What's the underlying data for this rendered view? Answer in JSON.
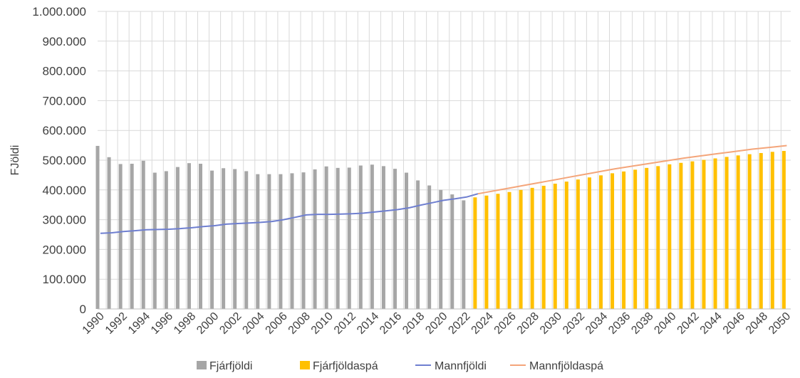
{
  "chart_data": {
    "type": "bar",
    "ylabel": "FJöldi",
    "ylim": [
      0,
      1000000
    ],
    "yticks": [
      "0",
      "100.000",
      "200.000",
      "300.000",
      "400.000",
      "500.000",
      "600.000",
      "700.000",
      "800.000",
      "900.000",
      "1.000.000"
    ],
    "ytick_values": [
      0,
      100000,
      200000,
      300000,
      400000,
      500000,
      600000,
      700000,
      800000,
      900000,
      1000000
    ],
    "x": [
      1990,
      1991,
      1992,
      1993,
      1994,
      1995,
      1996,
      1997,
      1998,
      1999,
      2000,
      2001,
      2002,
      2003,
      2004,
      2005,
      2006,
      2007,
      2008,
      2009,
      2010,
      2011,
      2012,
      2013,
      2014,
      2015,
      2016,
      2017,
      2018,
      2019,
      2020,
      2021,
      2022,
      2023,
      2024,
      2025,
      2026,
      2027,
      2028,
      2029,
      2030,
      2031,
      2032,
      2033,
      2034,
      2035,
      2036,
      2037,
      2038,
      2039,
      2040,
      2041,
      2042,
      2043,
      2044,
      2045,
      2046,
      2047,
      2048,
      2049,
      2050
    ],
    "xtick_labels": [
      "1990",
      "1992",
      "1994",
      "1996",
      "1998",
      "2000",
      "2002",
      "2004",
      "2006",
      "2008",
      "2010",
      "2012",
      "2014",
      "2016",
      "2018",
      "2020",
      "2022",
      "2024",
      "2026",
      "2028",
      "2030",
      "2032",
      "2034",
      "2036",
      "2038",
      "2040",
      "2042",
      "2044",
      "2046",
      "2048",
      "2050"
    ],
    "grid": true,
    "legend_position": "bottom",
    "series": [
      {
        "name": "Fjárfjöldi",
        "kind": "bar",
        "color": "#a6a6a6",
        "x": [
          1990,
          1991,
          1992,
          1993,
          1994,
          1995,
          1996,
          1997,
          1998,
          1999,
          2000,
          2001,
          2002,
          2003,
          2004,
          2005,
          2006,
          2007,
          2008,
          2009,
          2010,
          2011,
          2012,
          2013,
          2014,
          2015,
          2016,
          2017,
          2018,
          2019,
          2020,
          2021,
          2022
        ],
        "values": [
          548000,
          510000,
          487000,
          488000,
          498000,
          458000,
          463000,
          477000,
          490000,
          488000,
          465000,
          473000,
          470000,
          463000,
          453000,
          453000,
          453000,
          456000,
          459000,
          469000,
          479000,
          474000,
          475000,
          482000,
          485000,
          480000,
          471000,
          458000,
          432000,
          415000,
          400000,
          385000,
          365000
        ]
      },
      {
        "name": "Fjárfjöldaspá",
        "kind": "bar",
        "color": "#ffc000",
        "x": [
          2023,
          2024,
          2025,
          2026,
          2027,
          2028,
          2029,
          2030,
          2031,
          2032,
          2033,
          2034,
          2035,
          2036,
          2037,
          2038,
          2039,
          2040,
          2041,
          2042,
          2043,
          2044,
          2045,
          2046,
          2047,
          2048,
          2049,
          2050
        ],
        "values": [
          375000,
          381000,
          387000,
          393000,
          400000,
          407000,
          414000,
          421000,
          428000,
          435000,
          442000,
          449000,
          456000,
          462000,
          468000,
          474000,
          480000,
          486000,
          491000,
          496000,
          501000,
          506000,
          511000,
          516000,
          520000,
          524000,
          528000,
          531000
        ]
      },
      {
        "name": "Mannfjöldi",
        "kind": "line",
        "color": "#6f7fd0",
        "x": [
          1990,
          1991,
          1992,
          1993,
          1994,
          1995,
          1996,
          1997,
          1998,
          1999,
          2000,
          2001,
          2002,
          2003,
          2004,
          2005,
          2006,
          2007,
          2008,
          2009,
          2010,
          2011,
          2012,
          2013,
          2014,
          2015,
          2016,
          2017,
          2018,
          2019,
          2020,
          2021,
          2022,
          2023
        ],
        "values": [
          254000,
          256000,
          260000,
          263000,
          266000,
          267000,
          268000,
          270000,
          273000,
          277000,
          280000,
          285000,
          287000,
          289000,
          291000,
          294000,
          300000,
          308000,
          316000,
          318000,
          318000,
          319000,
          320000,
          322000,
          326000,
          330000,
          334000,
          340000,
          349000,
          357000,
          365000,
          370000,
          376000,
          387000
        ]
      },
      {
        "name": "Mannfjöldaspá",
        "kind": "line",
        "color": "#f4a57a",
        "x": [
          2023,
          2024,
          2025,
          2026,
          2027,
          2028,
          2029,
          2030,
          2031,
          2032,
          2033,
          2034,
          2035,
          2036,
          2037,
          2038,
          2039,
          2040,
          2041,
          2042,
          2043,
          2044,
          2045,
          2046,
          2047,
          2048,
          2049,
          2050
        ],
        "values": [
          387000,
          394000,
          401000,
          408000,
          415000,
          422000,
          429000,
          436000,
          443000,
          450000,
          457000,
          464000,
          471000,
          477000,
          483000,
          489000,
          495000,
          501000,
          507000,
          512000,
          517000,
          522000,
          527000,
          532000,
          537000,
          541000,
          545000,
          549000
        ]
      }
    ]
  }
}
